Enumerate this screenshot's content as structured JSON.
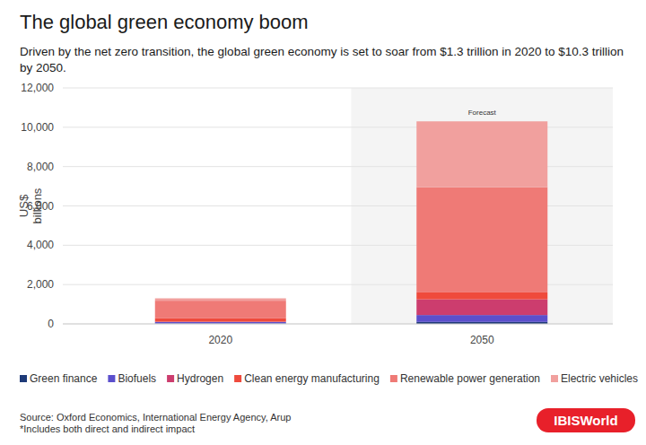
{
  "chart_data": {
    "type": "bar",
    "stacked": true,
    "grid": true,
    "legend": "bottom",
    "title": "The global green economy boom",
    "subtitle": "Driven by the net zero transition, the global green economy is set to soar from $1.3 trillion in 2020 to $10.3 trillion by 2050.",
    "y_label": "US$ billions",
    "categories": [
      "2020",
      "2050"
    ],
    "series": [
      {
        "name": "Green finance",
        "color": "#1e3a78",
        "values": [
          20,
          100
        ]
      },
      {
        "name": "Biofuels",
        "color": "#5b4fcc",
        "values": [
          80,
          350
        ]
      },
      {
        "name": "Hydrogen",
        "color": "#cc3d6e",
        "values": [
          10,
          800
        ]
      },
      {
        "name": "Clean energy manufacturing",
        "color": "#ef4a3c",
        "values": [
          170,
          350
        ]
      },
      {
        "name": "Renewable power generation",
        "color": "#ef7a76",
        "values": [
          900,
          5350
        ]
      },
      {
        "name": "Electric vehicles",
        "color": "#f1a09e",
        "values": [
          120,
          3350
        ]
      }
    ],
    "ylim": [
      0,
      12000
    ],
    "yticks": [
      0,
      {
        "value": 2000,
        "label": "2,000"
      },
      {
        "value": 4000,
        "label": "4,000"
      },
      {
        "value": 6000,
        "label": "6,000"
      },
      {
        "value": 8000,
        "label": "8,000"
      },
      {
        "value": 10000,
        "label": "10,000"
      },
      {
        "value": 12000,
        "label": "12,000"
      }
    ],
    "annotations": [
      {
        "text": "Forecast",
        "x": "2050"
      }
    ],
    "source": "Source: Oxford Economics, International Energy Agency, Arup",
    "footnote": "*Includes both direct and indirect impact",
    "brand": "IBISWorld"
  }
}
